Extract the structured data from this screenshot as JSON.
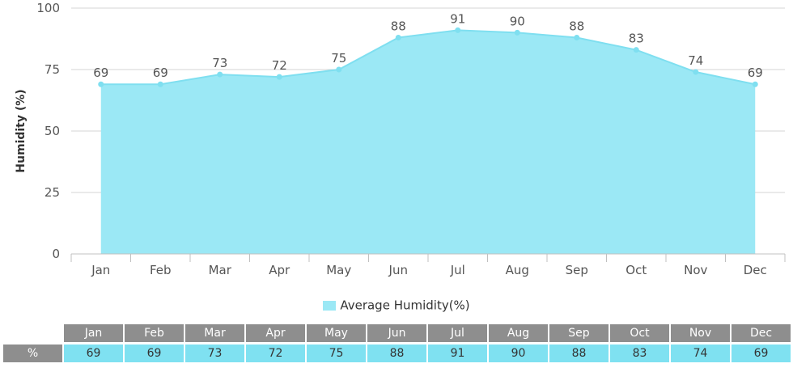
{
  "chart_data": {
    "type": "area",
    "categories": [
      "Jan",
      "Feb",
      "Mar",
      "Apr",
      "May",
      "Jun",
      "Jul",
      "Aug",
      "Sep",
      "Oct",
      "Nov",
      "Dec"
    ],
    "series": [
      {
        "name": "Average Humidity(%)",
        "values": [
          69,
          69,
          73,
          72,
          75,
          88,
          91,
          90,
          88,
          83,
          74,
          69
        ]
      }
    ],
    "ylabel": "Humidity (%)",
    "xlabel": "",
    "ylim": [
      0,
      100
    ],
    "yticks": [
      0,
      25,
      50,
      75,
      100
    ],
    "grid": true,
    "legend": "bottom",
    "data_labels": true
  },
  "colors": {
    "fill": "#9be8f5",
    "line": "#7fdff0",
    "grid": "#d4d4d4",
    "axis": "#c0c0c0",
    "header_bg": "#8e8e8e",
    "value_bg": "#7fe1f1"
  },
  "legend": {
    "label": "Average Humidity(%)"
  },
  "table": {
    "row_label": "%",
    "months": [
      "Jan",
      "Feb",
      "Mar",
      "Apr",
      "May",
      "Jun",
      "Jul",
      "Aug",
      "Sep",
      "Oct",
      "Nov",
      "Dec"
    ],
    "values": [
      "69",
      "69",
      "73",
      "72",
      "75",
      "88",
      "91",
      "90",
      "88",
      "83",
      "74",
      "69"
    ]
  }
}
